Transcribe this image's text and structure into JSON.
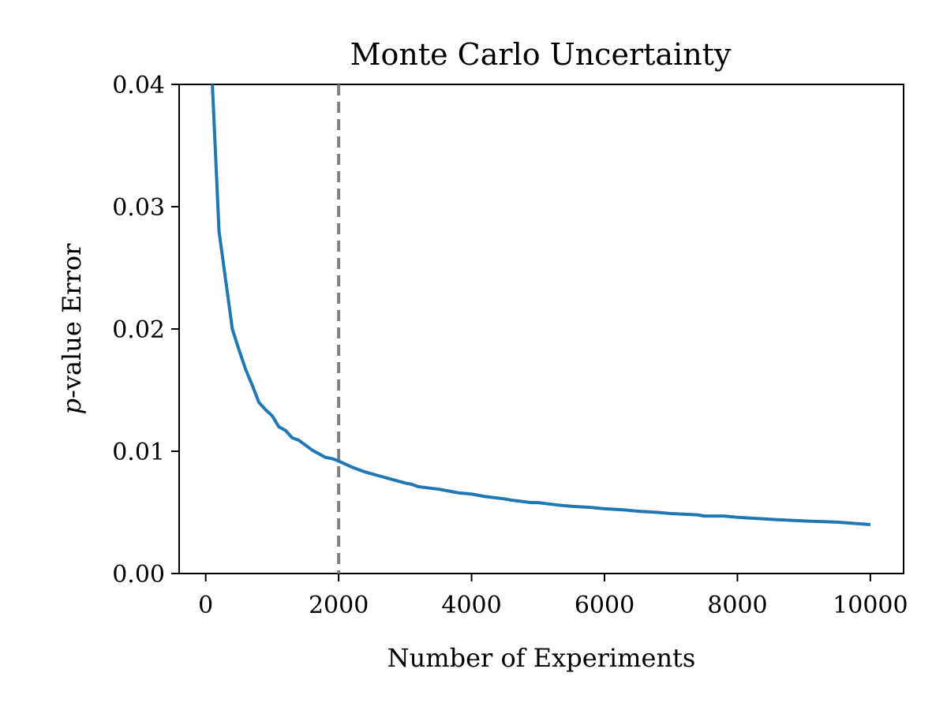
{
  "chart_data": {
    "type": "line",
    "title": "Monte Carlo Uncertainty",
    "xlabel": "Number of Experiments",
    "ylabel": {
      "italic": "p",
      "rest": "-value Error"
    },
    "xlim": [
      -400,
      10500
    ],
    "ylim": [
      0.0,
      0.04
    ],
    "xticks": [
      0,
      2000,
      4000,
      6000,
      8000,
      10000
    ],
    "xtick_labels": [
      "0",
      "2000",
      "4000",
      "6000",
      "8000",
      "10000"
    ],
    "yticks": [
      0.0,
      0.01,
      0.02,
      0.03,
      0.04
    ],
    "ytick_labels": [
      "0.00",
      "0.01",
      "0.02",
      "0.03",
      "0.04"
    ],
    "grid": false,
    "series": [
      {
        "color": "#1f77b4",
        "x": [
          100,
          200,
          300,
          400,
          500,
          600,
          700,
          800,
          900,
          1000,
          1100,
          1200,
          1300,
          1400,
          1500,
          1600,
          1700,
          1800,
          1900,
          2000,
          2200,
          2400,
          2600,
          2800,
          3000,
          3100,
          3200,
          3500,
          3700,
          3800,
          4000,
          4200,
          4500,
          4600,
          4900,
          5000,
          5300,
          5500,
          5800,
          6000,
          6300,
          6500,
          6800,
          7000,
          7400,
          7500,
          7800,
          8000,
          8300,
          8600,
          9000,
          9500,
          10000
        ],
        "y": [
          0.04,
          0.028,
          0.024,
          0.02,
          0.0183,
          0.0167,
          0.0154,
          0.014,
          0.0134,
          0.0129,
          0.012,
          0.0117,
          0.0111,
          0.0109,
          0.0105,
          0.0101,
          0.0098,
          0.0095,
          0.0094,
          0.0092,
          0.0087,
          0.0083,
          0.008,
          0.0077,
          0.0074,
          0.0073,
          0.0071,
          0.0069,
          0.0067,
          0.0066,
          0.0065,
          0.0063,
          0.0061,
          0.006,
          0.0058,
          0.0058,
          0.0056,
          0.0055,
          0.0054,
          0.0053,
          0.0052,
          0.0051,
          0.005,
          0.0049,
          0.0048,
          0.0047,
          0.0047,
          0.0046,
          0.0045,
          0.0044,
          0.0043,
          0.0042,
          0.004
        ]
      }
    ],
    "vline": {
      "x": 2000,
      "color": "#808080",
      "style": "dashed"
    }
  }
}
